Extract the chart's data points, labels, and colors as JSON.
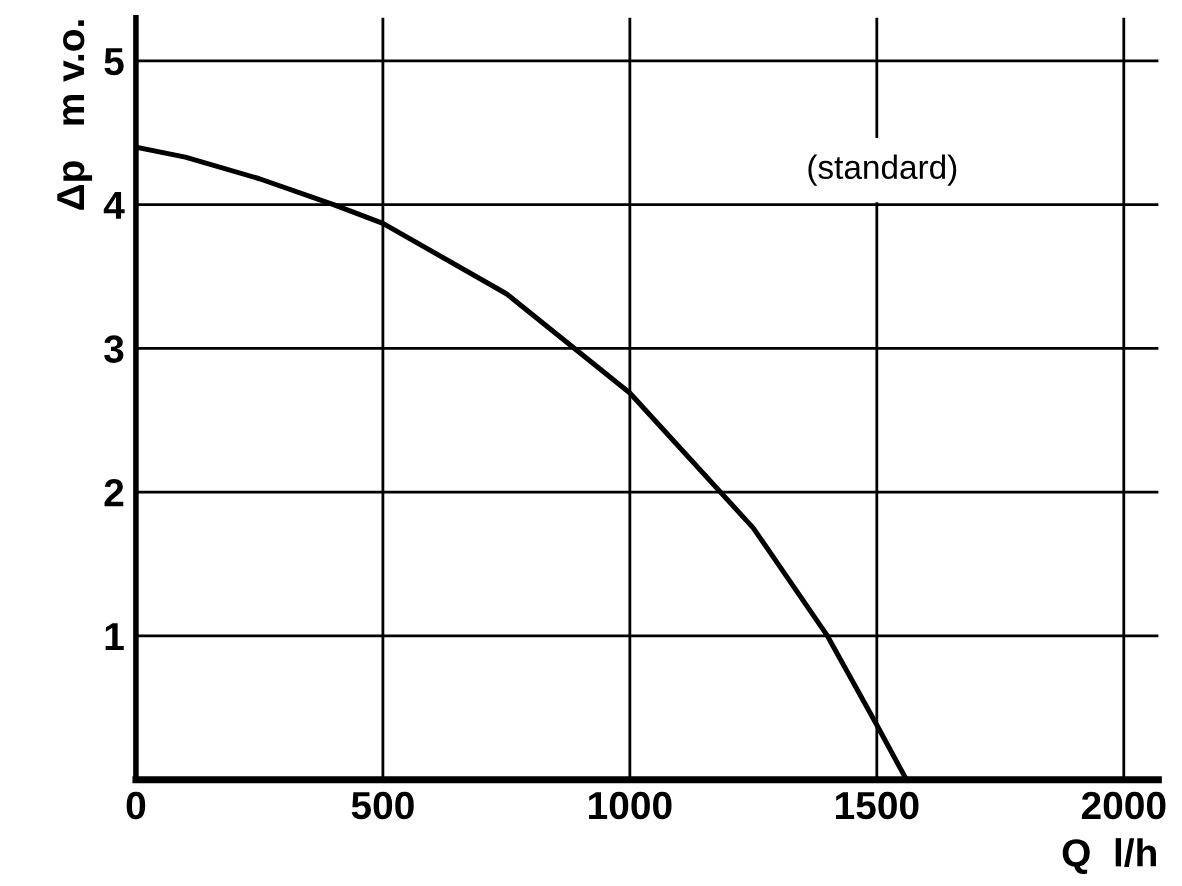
{
  "chart_data": {
    "type": "line",
    "xlabel": "Q  l/h",
    "ylabel": "Δp   m v.o.",
    "x": [
      0,
      100,
      250,
      400,
      500,
      750,
      1000,
      1250,
      1400,
      1500,
      1560
    ],
    "series": [
      {
        "color": "#000000",
        "values": [
          4.4,
          4.33,
          4.18,
          4.0,
          3.87,
          3.38,
          2.69,
          1.75,
          1.0,
          0.38,
          0.0
        ]
      }
    ],
    "xlim": [
      0,
      2070
    ],
    "ylim": [
      0,
      5.3
    ],
    "xticks": [
      0,
      500,
      1000,
      1500,
      2000
    ],
    "yticks": [
      1,
      2,
      3,
      4,
      5
    ],
    "grid": true,
    "marker": "none",
    "line_style": "solid",
    "annotations": [
      "(standard)"
    ]
  }
}
